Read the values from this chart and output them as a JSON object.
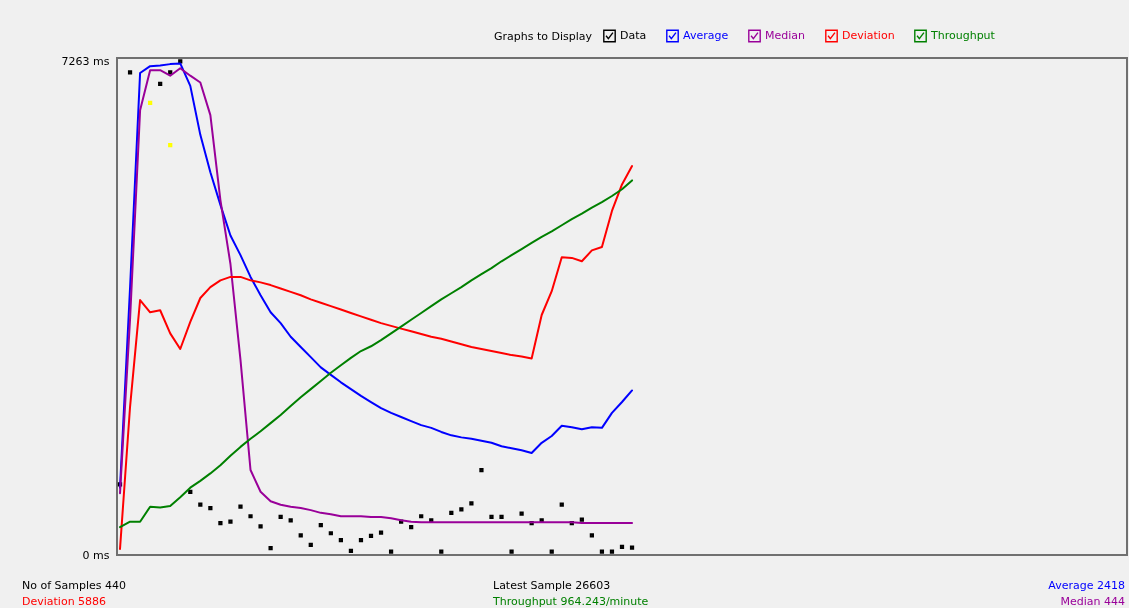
{
  "chart_data": {
    "type": "line",
    "legend_title": "Graphs to Display",
    "legend": "top",
    "tick_labels": "y",
    "ylim": [
      0,
      7310
    ],
    "yticks": [
      {
        "value": 0,
        "label": "0 ms"
      },
      {
        "value": 7263,
        "label": "7263 ms"
      }
    ],
    "categories": [
      null,
      null,
      null,
      null,
      null,
      null,
      null,
      null,
      null,
      null,
      null,
      null,
      null,
      null,
      null,
      null,
      null,
      null,
      null,
      null,
      null,
      null,
      null,
      null,
      null,
      null,
      null,
      null,
      null,
      null,
      null,
      null,
      null,
      null,
      null,
      null,
      null,
      null,
      null,
      null,
      null,
      null,
      null,
      null,
      null,
      null,
      null,
      null,
      null,
      null,
      null,
      null,
      null,
      null,
      null,
      null,
      null,
      null,
      null,
      null,
      null,
      null,
      null,
      null,
      null,
      null,
      null,
      null,
      null,
      null,
      null,
      null,
      null,
      null,
      null,
      null,
      null,
      null,
      null,
      null,
      null,
      null,
      null,
      null,
      null,
      null,
      null,
      null,
      null,
      null,
      null,
      null,
      null,
      null,
      null,
      null,
      null,
      null,
      null,
      null,
      null
    ],
    "series": [
      {
        "name": "Data",
        "type": "scatter",
        "marker": "square",
        "color": "#000000",
        "values": [
          1040,
          7100,
          null,
          null,
          6930,
          7100,
          7260,
          930,
          740,
          690,
          470,
          490,
          710,
          570,
          420,
          100,
          560,
          510,
          290,
          150,
          440,
          320,
          220,
          60,
          220,
          280,
          330,
          50,
          490,
          410,
          570,
          510,
          50,
          620,
          670,
          760,
          1250,
          560,
          560,
          50,
          610,
          470,
          510,
          50,
          740,
          470,
          520,
          290,
          50,
          50,
          120,
          110,
          null,
          null,
          null,
          null,
          null,
          null,
          null,
          null,
          null,
          null,
          null,
          null,
          null,
          null,
          null,
          null,
          null,
          null,
          null,
          null,
          null,
          null,
          null,
          null,
          null,
          null,
          null,
          null,
          null,
          null,
          null,
          null,
          null,
          null,
          null,
          null,
          null,
          null,
          null,
          null,
          null,
          null,
          null,
          null,
          null,
          null,
          null,
          null,
          null
        ]
      },
      {
        "name": "Average",
        "color": "#0000ff",
        "values": [
          990,
          3930,
          7090,
          7190,
          7200,
          7220,
          7230,
          6900,
          6180,
          5630,
          5150,
          4700,
          4410,
          4090,
          3820,
          3570,
          3410,
          3210,
          3060,
          2910,
          2760,
          2650,
          2540,
          2440,
          2340,
          2250,
          2160,
          2090,
          2030,
          1970,
          1910,
          1870,
          1810,
          1760,
          1730,
          1710,
          1680,
          1650,
          1600,
          1570,
          1540,
          1500,
          1650,
          1750,
          1900,
          1880,
          1850,
          1880,
          1870,
          2090,
          2250,
          2420,
          null,
          null,
          null,
          null,
          null,
          null,
          null,
          null,
          null,
          null,
          null,
          null,
          null,
          null,
          null,
          null,
          null,
          null,
          null,
          null,
          null,
          null,
          null,
          null,
          null,
          null,
          null,
          null,
          null,
          null,
          null,
          null,
          null,
          null,
          null,
          null,
          null,
          null,
          null,
          null,
          null,
          null,
          null,
          null,
          null,
          null,
          null,
          null,
          null
        ]
      },
      {
        "name": "Median",
        "color": "#990099",
        "values": [
          910,
          3470,
          6540,
          7130,
          7130,
          7050,
          7160,
          7050,
          6950,
          6470,
          5220,
          4280,
          2870,
          1250,
          930,
          790,
          740,
          710,
          690,
          660,
          620,
          600,
          570,
          570,
          570,
          560,
          560,
          540,
          510,
          490,
          480,
          480,
          480,
          480,
          480,
          480,
          480,
          480,
          480,
          480,
          480,
          480,
          480,
          480,
          480,
          480,
          470,
          470,
          470,
          470,
          470,
          470,
          null,
          null,
          null,
          null,
          null,
          null,
          null,
          null,
          null,
          null,
          null,
          null,
          null,
          null,
          null,
          null,
          null,
          null,
          null,
          null,
          null,
          null,
          null,
          null,
          null,
          null,
          null,
          null,
          null,
          null,
          null,
          null,
          null,
          null,
          null,
          null,
          null,
          null,
          null,
          null,
          null,
          null,
          null,
          null,
          null,
          null,
          null,
          null,
          null
        ]
      },
      {
        "name": "Deviation",
        "color": "#ff0000",
        "values": [
          90,
          2180,
          3750,
          3570,
          3600,
          3260,
          3030,
          3430,
          3780,
          3940,
          4040,
          4090,
          4090,
          4040,
          4010,
          3970,
          3920,
          3870,
          3820,
          3760,
          3710,
          3660,
          3610,
          3560,
          3510,
          3460,
          3410,
          3370,
          3330,
          3290,
          3250,
          3210,
          3180,
          3140,
          3100,
          3060,
          3030,
          3000,
          2970,
          2940,
          2920,
          2890,
          3530,
          3880,
          4380,
          4370,
          4320,
          4480,
          4530,
          5060,
          5450,
          5720,
          null,
          null,
          null,
          null,
          null,
          null,
          null,
          null,
          null,
          null,
          null,
          null,
          null,
          null,
          null,
          null,
          null,
          null,
          null,
          null,
          null,
          null,
          null,
          null,
          null,
          null,
          null,
          null,
          null,
          null,
          null,
          null,
          null,
          null,
          null,
          null,
          null,
          null,
          null,
          null,
          null,
          null,
          null,
          null,
          null,
          null,
          null,
          null,
          null
        ]
      },
      {
        "name": "Throughput",
        "color": "#008000",
        "values": [
          410,
          490,
          490,
          710,
          700,
          720,
          850,
          990,
          1090,
          1200,
          1320,
          1460,
          1590,
          1710,
          1820,
          1940,
          2060,
          2190,
          2320,
          2440,
          2560,
          2680,
          2790,
          2900,
          3000,
          3070,
          3160,
          3260,
          3360,
          3460,
          3560,
          3660,
          3760,
          3850,
          3940,
          4040,
          4130,
          4220,
          4320,
          4410,
          4500,
          4590,
          4680,
          4760,
          4850,
          4940,
          5020,
          5110,
          5190,
          5280,
          5380,
          5510,
          null,
          null,
          null,
          null,
          null,
          null,
          null,
          null,
          null,
          null,
          null,
          null,
          null,
          null,
          null,
          null,
          null,
          null,
          null,
          null,
          null,
          null,
          null,
          null,
          null,
          null,
          null,
          null,
          null,
          null,
          null,
          null,
          null,
          null,
          null,
          null,
          null,
          null,
          null,
          null,
          null,
          null,
          null,
          null,
          null,
          null,
          null,
          null,
          null
        ]
      },
      {
        "type": "scatter",
        "marker": "square",
        "color": "#ffff00",
        "values": [
          null,
          null,
          null,
          6650,
          null,
          6030,
          null,
          null,
          null,
          null,
          null,
          null,
          null,
          null,
          null,
          null,
          null,
          null,
          null,
          null,
          null,
          null,
          null,
          null,
          null,
          null,
          null,
          null,
          null,
          null,
          null,
          null,
          null,
          null,
          null,
          null,
          null,
          null,
          null,
          null,
          null,
          null,
          null,
          null,
          null,
          null,
          null,
          null,
          null,
          null,
          null,
          null,
          null,
          null,
          null,
          null,
          null,
          null,
          null,
          null,
          null,
          null,
          null,
          null,
          null,
          null,
          null,
          null,
          null,
          null,
          null,
          null,
          null,
          null,
          null,
          null,
          null,
          null,
          null,
          null,
          null,
          null,
          null,
          null,
          null,
          null,
          null,
          null,
          null,
          null,
          null,
          null,
          null,
          null,
          null,
          null,
          null,
          null,
          null,
          null,
          null
        ]
      }
    ],
    "annotations": [
      "No of Samples 440",
      "Deviation 5886",
      "Latest Sample 26603",
      "Throughput 964.243/minute",
      "Average 2418",
      "Median 444"
    ]
  }
}
